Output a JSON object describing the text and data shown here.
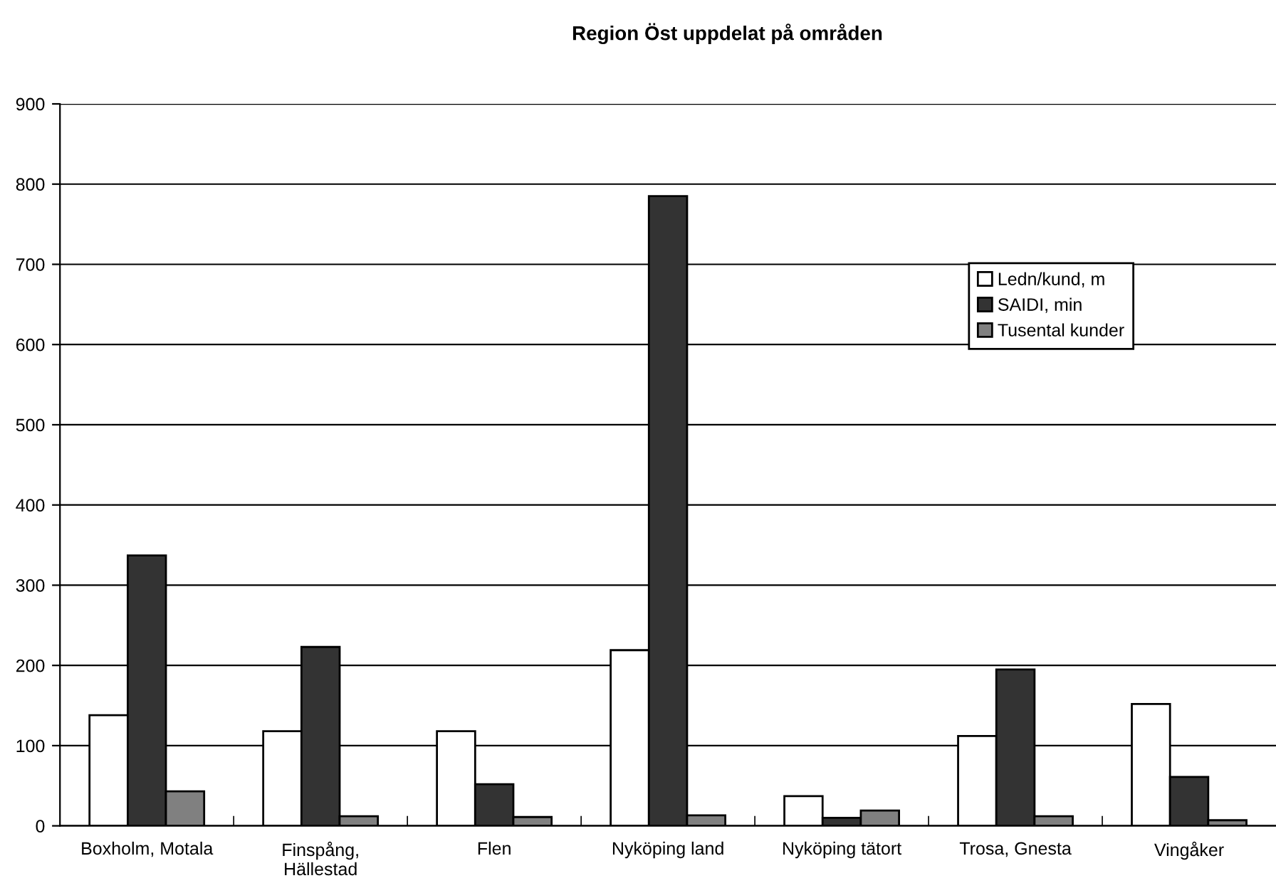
{
  "chart_data": {
    "type": "bar",
    "title": "Region Öst uppdelat på områden",
    "categories": [
      "Boxholm, Motala",
      "Finspång,\nHällestad",
      "Flen",
      "Nyköping land",
      "Nyköping tätort",
      "Trosa, Gnesta",
      "Vingåker"
    ],
    "series": [
      {
        "name": "Ledn/kund, m",
        "color": "#ffffff",
        "values": [
          138,
          118,
          118,
          219,
          37,
          112,
          152
        ]
      },
      {
        "name": "SAIDI, min",
        "color": "#333333",
        "values": [
          337,
          223,
          52,
          785,
          10,
          195,
          61
        ]
      },
      {
        "name": "Tusental kunder",
        "color": "#808080",
        "values": [
          43,
          12,
          11,
          13,
          19,
          12,
          7
        ]
      }
    ],
    "ylim": [
      0,
      900
    ],
    "yticks": [
      0,
      100,
      200,
      300,
      400,
      500,
      600,
      700,
      800,
      900
    ],
    "grid": "y",
    "legend": "right"
  }
}
